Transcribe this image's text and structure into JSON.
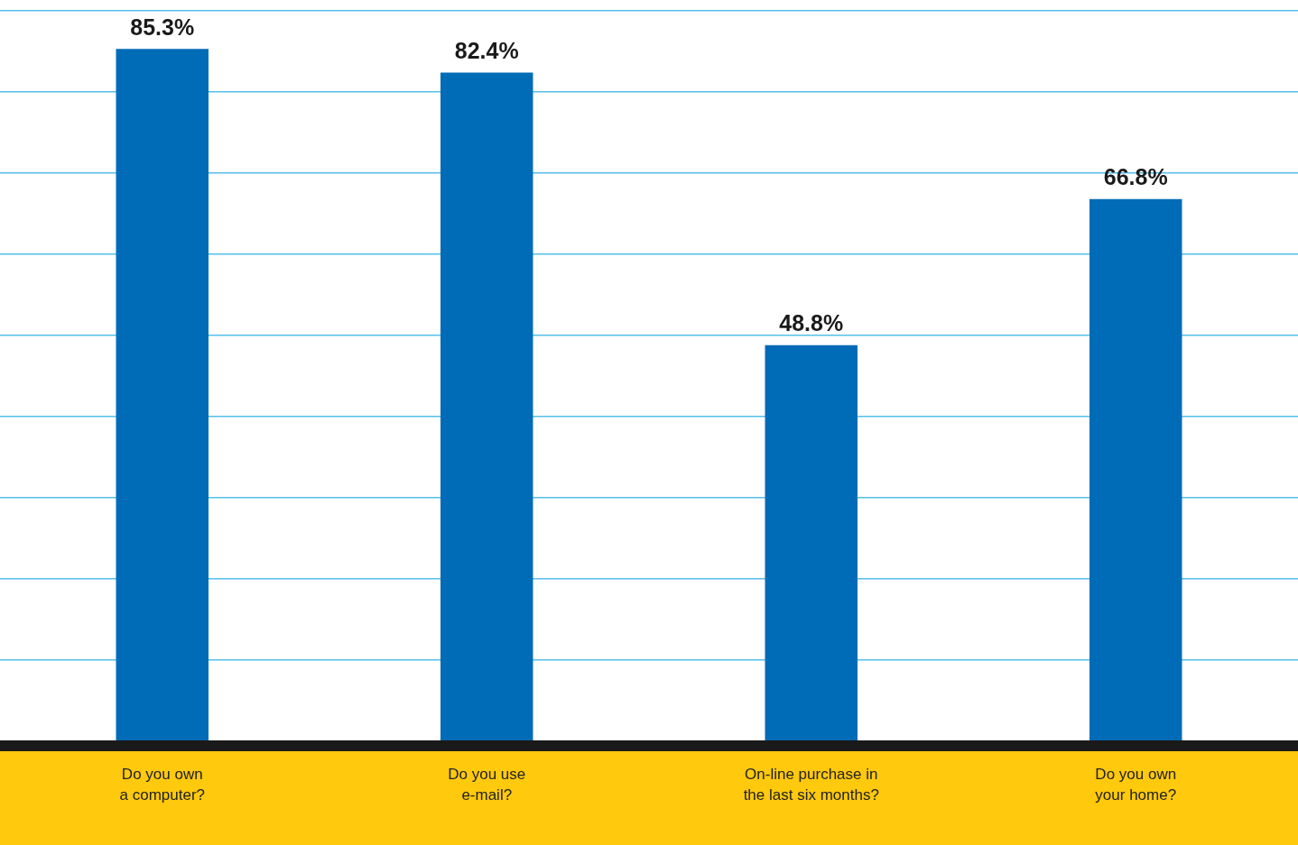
{
  "chart_data": {
    "type": "bar",
    "categories": [
      "Do you own a computer?",
      "Do you use e-mail?",
      "On-line purchase in the last six months?",
      "Do you own your home?"
    ],
    "values": [
      85.3,
      82.4,
      48.8,
      66.8
    ],
    "value_labels": [
      "85.3%",
      "82.4%",
      "48.8%",
      "66.8%"
    ],
    "data_labels": true,
    "color": "#006bb6",
    "ylim": [
      0,
      90
    ],
    "yticks": [
      0,
      10,
      20,
      30,
      40,
      50,
      60,
      70,
      80,
      90
    ],
    "grid": true,
    "tick_labels": "x"
  }
}
